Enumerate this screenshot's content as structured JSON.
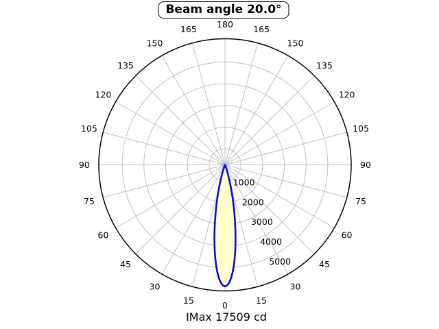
{
  "chart_data": {
    "type": "polar",
    "title": "Beam angle 20.0°",
    "footer": "IMax 17509 cd",
    "beam_angle_deg": 20.0,
    "imax_cd": 17509,
    "orientation": "0-degrees-at-bottom",
    "grid": true,
    "angle_tick_step_deg": 15,
    "angle_tick_labels": [
      "0",
      "15",
      "30",
      "45",
      "60",
      "75",
      "90",
      "105",
      "120",
      "135",
      "150",
      "165",
      "180"
    ],
    "angle_ticks_mirrored": true,
    "r_axis": {
      "tick_values": [
        1000,
        2000,
        3000,
        4000,
        5000
      ],
      "tick_labels": [
        "1000",
        "2000",
        "3000",
        "4000",
        "5000"
      ],
      "center_value": 265,
      "outer_value": 6078,
      "label_ray_deg": 24.5
    },
    "curve": {
      "name": "intensity-distribution",
      "symmetric": true,
      "peak_value": 5864,
      "points": [
        [
          0,
          5864
        ],
        [
          1,
          5823
        ],
        [
          2,
          5703
        ],
        [
          3,
          5509
        ],
        [
          4,
          5248
        ],
        [
          5,
          4931
        ],
        [
          6,
          4569
        ],
        [
          7,
          4176
        ],
        [
          8,
          3763
        ],
        [
          9,
          3344
        ],
        [
          10,
          2932
        ],
        [
          11,
          2536
        ],
        [
          12,
          2164
        ],
        [
          13,
          1823
        ],
        [
          14,
          1515
        ],
        [
          15,
          1233
        ],
        [
          16,
          994
        ],
        [
          17,
          791
        ],
        [
          18,
          620
        ],
        [
          19,
          480
        ],
        [
          20,
          367
        ],
        [
          21,
          276
        ],
        [
          22,
          205
        ]
      ]
    },
    "colors": {
      "background": "#ffffff",
      "grid": "#c0c0c0",
      "outer_ring": "#000000",
      "curve_stroke": "#0808e8",
      "curve_fill": "#ffffcc",
      "text": "#000000"
    }
  }
}
